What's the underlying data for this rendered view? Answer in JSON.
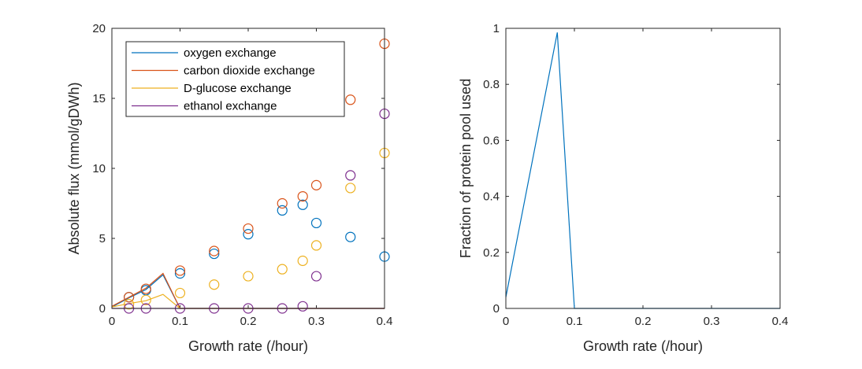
{
  "chart_data": [
    {
      "type": "scatter",
      "xlabel": "Growth rate (/hour)",
      "ylabel": "Absolute flux (mmol/gDWh)",
      "xlim": [
        0,
        0.4
      ],
      "ylim": [
        0,
        20
      ],
      "xticks": [
        0,
        0.1,
        0.2,
        0.3,
        0.4
      ],
      "xtick_labels": [
        "0",
        "0.1",
        "0.2",
        "0.3",
        "0.4"
      ],
      "yticks": [
        0,
        5,
        10,
        15,
        20
      ],
      "ytick_labels": [
        "0",
        "5",
        "10",
        "15",
        "20"
      ],
      "legend_position": "top-left",
      "series": [
        {
          "name": "oxygen exchange",
          "color": "#0072BD",
          "line_x": [
            0,
            0.025,
            0.05,
            0.075,
            0.1,
            0.4
          ],
          "line_y": [
            0.1,
            0.75,
            1.35,
            2.4,
            0,
            0
          ],
          "points_x": [
            0.025,
            0.05,
            0.1,
            0.15,
            0.2,
            0.25,
            0.28,
            0.3,
            0.35,
            0.4
          ],
          "points_y": [
            0.8,
            1.3,
            2.5,
            3.9,
            5.3,
            7.0,
            7.4,
            6.1,
            5.1,
            3.7
          ]
        },
        {
          "name": "carbon dioxide exchange",
          "color": "#D95319",
          "line_x": [
            0,
            0.025,
            0.05,
            0.075,
            0.1,
            0.4
          ],
          "line_y": [
            0.15,
            0.8,
            1.45,
            2.5,
            0,
            0
          ],
          "points_x": [
            0.025,
            0.05,
            0.1,
            0.15,
            0.2,
            0.25,
            0.28,
            0.3,
            0.35,
            0.4
          ],
          "points_y": [
            0.8,
            1.4,
            2.7,
            4.1,
            5.7,
            7.5,
            8.0,
            8.8,
            14.9,
            18.9
          ]
        },
        {
          "name": "D-glucose exchange",
          "color": "#EDB120",
          "line_x": [
            0,
            0.025,
            0.05,
            0.075,
            0.1,
            0.4
          ],
          "line_y": [
            0.1,
            0.35,
            0.55,
            1.0,
            0,
            0
          ],
          "points_x": [
            0.025,
            0.05,
            0.1,
            0.15,
            0.2,
            0.25,
            0.28,
            0.3,
            0.35,
            0.4
          ],
          "points_y": [
            0.3,
            0.6,
            1.1,
            1.7,
            2.3,
            2.8,
            3.4,
            4.5,
            8.6,
            11.1
          ]
        },
        {
          "name": "ethanol exchange",
          "color": "#7E2F8E",
          "line_x": [
            0,
            0.4
          ],
          "line_y": [
            0,
            0
          ],
          "points_x": [
            0.025,
            0.05,
            0.1,
            0.15,
            0.2,
            0.25,
            0.28,
            0.3,
            0.35,
            0.4
          ],
          "points_y": [
            0,
            0,
            0,
            0,
            0,
            0,
            0.15,
            2.3,
            9.5,
            13.9
          ]
        }
      ]
    },
    {
      "type": "line",
      "xlabel": "Growth rate (/hour)",
      "ylabel": "Fraction of protein pool used",
      "xlim": [
        0,
        0.4
      ],
      "ylim": [
        0,
        1
      ],
      "xticks": [
        0,
        0.1,
        0.2,
        0.3,
        0.4
      ],
      "xtick_labels": [
        "0",
        "0.1",
        "0.2",
        "0.3",
        "0.4"
      ],
      "yticks": [
        0,
        0.2,
        0.4,
        0.6,
        0.8,
        1
      ],
      "ytick_labels": [
        "0",
        "0.2",
        "0.4",
        "0.6",
        "0.8",
        "1"
      ],
      "series": [
        {
          "name": "protein pool",
          "color": "#0072BD",
          "x": [
            0,
            0.075,
            0.1,
            0.4
          ],
          "y": [
            0.04,
            0.985,
            0,
            0
          ]
        }
      ]
    }
  ]
}
